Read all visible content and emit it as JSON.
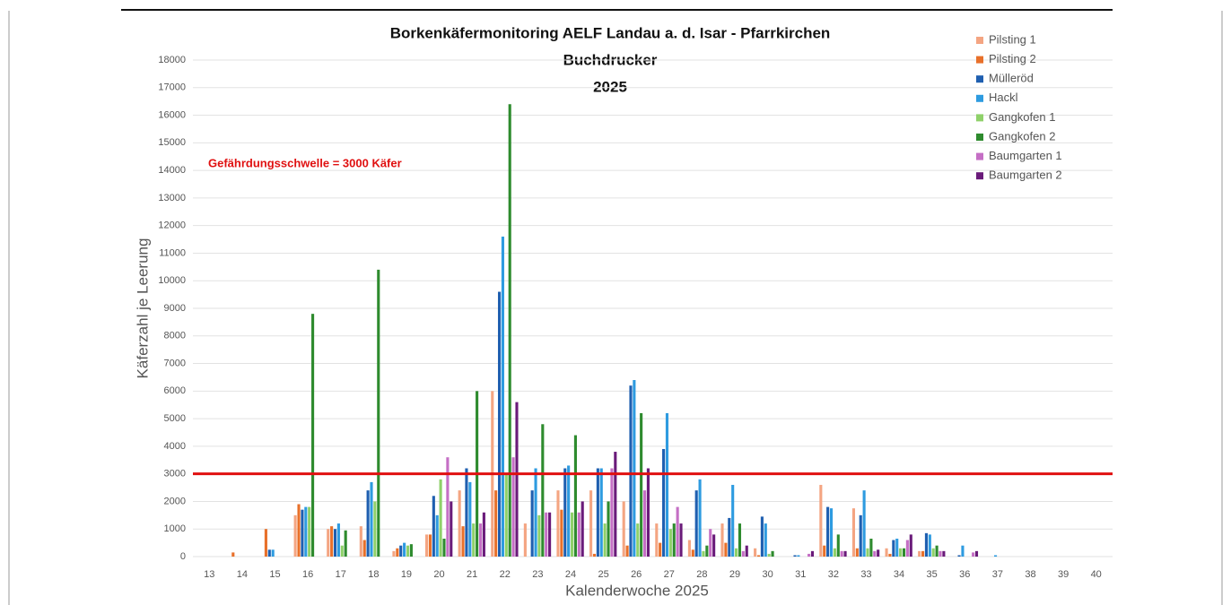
{
  "chart_data": {
    "type": "bar",
    "title_lines": [
      "Borkenkäfermonitoring AELF Landau a. d. Isar - Pfarrkirchen",
      "Buchdrucker",
      "2025"
    ],
    "y_axis_label": "Käferzahl je Leerung",
    "x_axis_label": "Kalenderwoche 2025",
    "annotation": "Gefährdungsschwelle = 3000 Käfer",
    "threshold": 3000,
    "threshold_color": "#e01010",
    "categories": [
      "13",
      "14",
      "15",
      "16",
      "17",
      "18",
      "19",
      "20",
      "21",
      "22",
      "23",
      "24",
      "25",
      "26",
      "27",
      "28",
      "29",
      "30",
      "31",
      "32",
      "33",
      "34",
      "35",
      "36",
      "37",
      "38",
      "39",
      "40"
    ],
    "series": [
      {
        "name": "Pilsting 1",
        "color": "#f4a582",
        "values": [
          0,
          0,
          0,
          1500,
          1000,
          1100,
          200,
          800,
          2400,
          6000,
          1200,
          2400,
          2400,
          2000,
          1200,
          600,
          1200,
          300,
          0,
          2600,
          1750,
          300,
          200,
          0,
          0,
          0,
          0,
          0
        ]
      },
      {
        "name": "Pilsting 2",
        "color": "#e8702a",
        "values": [
          0,
          150,
          1000,
          1900,
          1100,
          600,
          300,
          800,
          1100,
          2400,
          0,
          1700,
          100,
          400,
          500,
          250,
          500,
          50,
          0,
          400,
          300,
          100,
          200,
          0,
          0,
          0,
          0,
          0
        ]
      },
      {
        "name": "Mülleröd",
        "color": "#1f5fb0",
        "values": [
          0,
          0,
          250,
          1700,
          1000,
          2400,
          400,
          2200,
          3200,
          9600,
          2400,
          3200,
          3200,
          6200,
          3900,
          2400,
          1400,
          1450,
          50,
          1800,
          1500,
          600,
          850,
          50,
          0,
          0,
          0,
          0
        ]
      },
      {
        "name": "Hackl",
        "color": "#2e9be0",
        "values": [
          0,
          0,
          250,
          1800,
          1200,
          2700,
          500,
          1500,
          2700,
          11600,
          3200,
          3300,
          3200,
          6400,
          5200,
          2800,
          2600,
          1200,
          50,
          1750,
          2400,
          650,
          800,
          400,
          50,
          0,
          0,
          0
        ]
      },
      {
        "name": "Gangkofen 1",
        "color": "#8fd16a",
        "values": [
          0,
          0,
          0,
          1800,
          400,
          2000,
          400,
          2800,
          1200,
          3000,
          1500,
          1600,
          1200,
          1200,
          1000,
          200,
          300,
          100,
          0,
          300,
          300,
          300,
          300,
          0,
          0,
          0,
          0,
          0
        ]
      },
      {
        "name": "Gangkofen 2",
        "color": "#2e8b2e",
        "values": [
          0,
          0,
          0,
          8800,
          950,
          10400,
          450,
          650,
          6000,
          16400,
          4800,
          4400,
          2000,
          5200,
          1200,
          400,
          1200,
          200,
          0,
          800,
          650,
          300,
          400,
          0,
          0,
          0,
          0,
          0
        ]
      },
      {
        "name": "Baumgarten 1",
        "color": "#c56fc5",
        "values": [
          0,
          0,
          0,
          0,
          0,
          0,
          0,
          3600,
          1200,
          3600,
          1600,
          1600,
          3200,
          2400,
          1800,
          1000,
          200,
          0,
          100,
          200,
          200,
          600,
          200,
          150,
          0,
          0,
          0,
          0
        ]
      },
      {
        "name": "Baumgarten 2",
        "color": "#6a1b7a",
        "values": [
          0,
          0,
          0,
          0,
          0,
          0,
          0,
          2000,
          1600,
          5600,
          1600,
          2000,
          3800,
          3200,
          1200,
          800,
          400,
          0,
          200,
          200,
          250,
          800,
          200,
          200,
          0,
          0,
          0,
          0
        ]
      }
    ],
    "ylim": [
      0,
      18000
    ],
    "yticks": [
      0,
      1000,
      2000,
      3000,
      4000,
      5000,
      6000,
      7000,
      8000,
      9000,
      10000,
      11000,
      12000,
      13000,
      14000,
      15000,
      16000,
      17000,
      18000
    ],
    "grid": true,
    "legend": "top-right"
  }
}
